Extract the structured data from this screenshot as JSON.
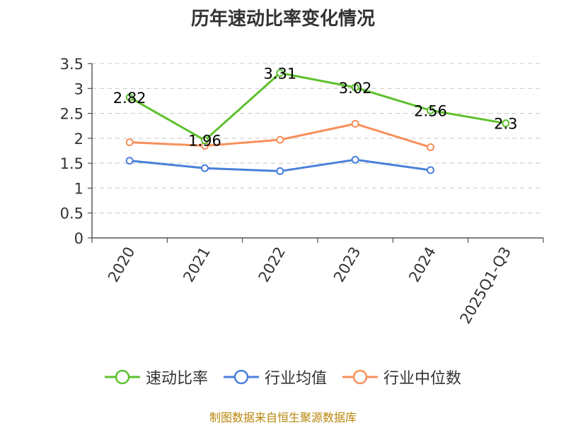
{
  "title": "历年速动比率变化情况",
  "source": "制图数据来自恒生聚源数据库",
  "chart_data": {
    "type": "line",
    "categories": [
      "2020",
      "2021",
      "2022",
      "2023",
      "2024",
      "2025Q1-Q3"
    ],
    "ylim": [
      0,
      3.5
    ],
    "yticks": [
      "0",
      "0.5",
      "1",
      "1.5",
      "2",
      "2.5",
      "3",
      "3.5"
    ],
    "grid": true,
    "legend_position": "bottom",
    "series": [
      {
        "name": "速动比率",
        "color": "#5ec02d",
        "values": [
          2.82,
          1.96,
          3.31,
          3.02,
          2.56,
          2.3
        ],
        "labels": [
          "2.82",
          "1.96",
          "3.31",
          "3.02",
          "2.56",
          "2.3"
        ],
        "show_labels": true
      },
      {
        "name": "行业均值",
        "color": "#4a7fdb",
        "values": [
          1.55,
          1.4,
          1.34,
          1.57,
          1.36,
          null
        ],
        "show_labels": false
      },
      {
        "name": "行业中位数",
        "color": "#f98f5a",
        "values": [
          1.92,
          1.85,
          1.97,
          2.29,
          1.82,
          null
        ],
        "show_labels": false
      }
    ]
  }
}
